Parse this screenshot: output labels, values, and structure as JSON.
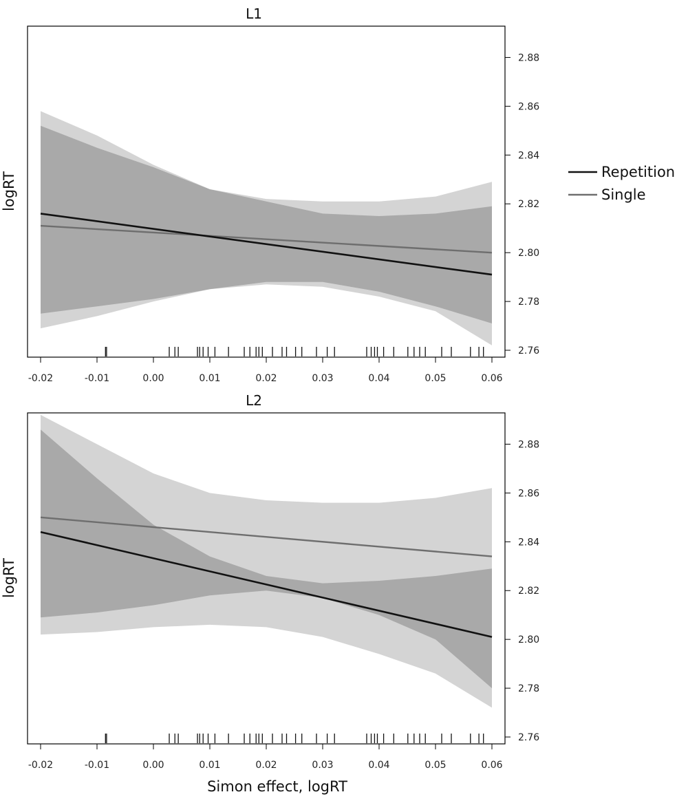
{
  "figure": {
    "xlabel": "Simon effect, logRT"
  },
  "legend": {
    "placement": "right",
    "items": [
      {
        "label": "Repetition",
        "color": "#111111"
      },
      {
        "label": "Single",
        "color": "#6e6e6e"
      }
    ]
  },
  "chart_data": [
    {
      "type": "line",
      "title": "L1",
      "xlabel": "",
      "ylabel": "logRT",
      "xlim": [
        -0.02,
        0.06
      ],
      "ylim": [
        2.76,
        2.89
      ],
      "x_ticks": [
        -0.02,
        -0.01,
        0.0,
        0.01,
        0.02,
        0.03,
        0.04,
        0.05,
        0.06
      ],
      "x_tick_labels": [
        "-0.02",
        "-0.01",
        "0.00",
        "0.01",
        "0.02",
        "0.03",
        "0.04",
        "0.05",
        "0.06"
      ],
      "y_ticks": [
        2.76,
        2.78,
        2.8,
        2.82,
        2.84,
        2.86,
        2.88
      ],
      "y_tick_labels": [
        "2.76",
        "2.78",
        "2.80",
        "2.82",
        "2.84",
        "2.86",
        "2.88"
      ],
      "y_axis_side": "right",
      "grid": false,
      "series": [
        {
          "name": "Repetition",
          "color": "#111111",
          "x": [
            -0.02,
            0.06
          ],
          "y": [
            2.816,
            2.791
          ],
          "ci_x": [
            -0.02,
            -0.01,
            0.0,
            0.01,
            0.02,
            0.03,
            0.04,
            0.05,
            0.06
          ],
          "ci_upper": [
            2.852,
            2.843,
            2.835,
            2.826,
            2.821,
            2.816,
            2.815,
            2.816,
            2.819
          ],
          "ci_lower": [
            2.775,
            2.778,
            2.781,
            2.785,
            2.787,
            2.786,
            2.782,
            2.776,
            2.762
          ]
        },
        {
          "name": "Single",
          "color": "#6e6e6e",
          "x": [
            -0.02,
            0.06
          ],
          "y": [
            2.811,
            2.8
          ],
          "ci_x": [
            -0.02,
            -0.01,
            0.0,
            0.01,
            0.02,
            0.03,
            0.04,
            0.05,
            0.06
          ],
          "ci_upper": [
            2.858,
            2.848,
            2.836,
            2.826,
            2.822,
            2.821,
            2.821,
            2.823,
            2.829
          ],
          "ci_lower": [
            2.769,
            2.774,
            2.78,
            2.785,
            2.788,
            2.788,
            2.784,
            2.778,
            2.771
          ]
        }
      ],
      "rug": [
        -0.0085,
        -0.0083,
        0.0028,
        0.0038,
        0.0044,
        0.0078,
        0.0082,
        0.0088,
        0.0097,
        0.0109,
        0.0133,
        0.0161,
        0.0171,
        0.0182,
        0.0187,
        0.0193,
        0.0211,
        0.0228,
        0.0236,
        0.0252,
        0.0263,
        0.0289,
        0.0308,
        0.0321,
        0.0378,
        0.0386,
        0.0392,
        0.0397,
        0.0408,
        0.0426,
        0.0451,
        0.0462,
        0.0472,
        0.0482,
        0.0511,
        0.0528,
        0.0562,
        0.0577,
        0.0585
      ]
    },
    {
      "type": "line",
      "title": "L2",
      "xlabel": "Simon effect, logRT",
      "ylabel": "logRT",
      "xlim": [
        -0.02,
        0.06
      ],
      "ylim": [
        2.76,
        2.89
      ],
      "x_ticks": [
        -0.02,
        -0.01,
        0.0,
        0.01,
        0.02,
        0.03,
        0.04,
        0.05,
        0.06
      ],
      "x_tick_labels": [
        "-0.02",
        "-0.01",
        "0.00",
        "0.01",
        "0.02",
        "0.03",
        "0.04",
        "0.05",
        "0.06"
      ],
      "y_ticks": [
        2.76,
        2.78,
        2.8,
        2.82,
        2.84,
        2.86,
        2.88
      ],
      "y_tick_labels": [
        "2.76",
        "2.78",
        "2.80",
        "2.82",
        "2.84",
        "2.86",
        "2.88"
      ],
      "y_axis_side": "right",
      "grid": false,
      "series": [
        {
          "name": "Repetition",
          "color": "#111111",
          "x": [
            -0.02,
            0.06
          ],
          "y": [
            2.844,
            2.801
          ],
          "ci_x": [
            -0.02,
            -0.01,
            0.0,
            0.01,
            0.02,
            0.03,
            0.04,
            0.05,
            0.06
          ],
          "ci_upper": [
            2.886,
            2.866,
            2.847,
            2.834,
            2.826,
            2.823,
            2.824,
            2.826,
            2.829
          ],
          "ci_lower": [
            2.809,
            2.811,
            2.814,
            2.818,
            2.82,
            2.817,
            2.81,
            2.8,
            2.78
          ]
        },
        {
          "name": "Single",
          "color": "#6e6e6e",
          "x": [
            -0.02,
            0.06
          ],
          "y": [
            2.85,
            2.834
          ],
          "ci_x": [
            -0.02,
            -0.01,
            0.0,
            0.01,
            0.02,
            0.03,
            0.04,
            0.05,
            0.06
          ],
          "ci_upper": [
            2.892,
            2.88,
            2.868,
            2.86,
            2.857,
            2.856,
            2.856,
            2.858,
            2.862
          ],
          "ci_lower": [
            2.802,
            2.803,
            2.805,
            2.806,
            2.805,
            2.801,
            2.794,
            2.786,
            2.772
          ]
        }
      ],
      "rug": [
        -0.0085,
        -0.0083,
        0.0028,
        0.0038,
        0.0044,
        0.0078,
        0.0082,
        0.0088,
        0.0097,
        0.0109,
        0.0133,
        0.0161,
        0.0171,
        0.0182,
        0.0187,
        0.0193,
        0.0211,
        0.0228,
        0.0236,
        0.0252,
        0.0263,
        0.0289,
        0.0308,
        0.0321,
        0.0378,
        0.0386,
        0.0392,
        0.0397,
        0.0408,
        0.0426,
        0.0451,
        0.0462,
        0.0472,
        0.0482,
        0.0511,
        0.0528,
        0.0562,
        0.0577,
        0.0585
      ]
    }
  ]
}
